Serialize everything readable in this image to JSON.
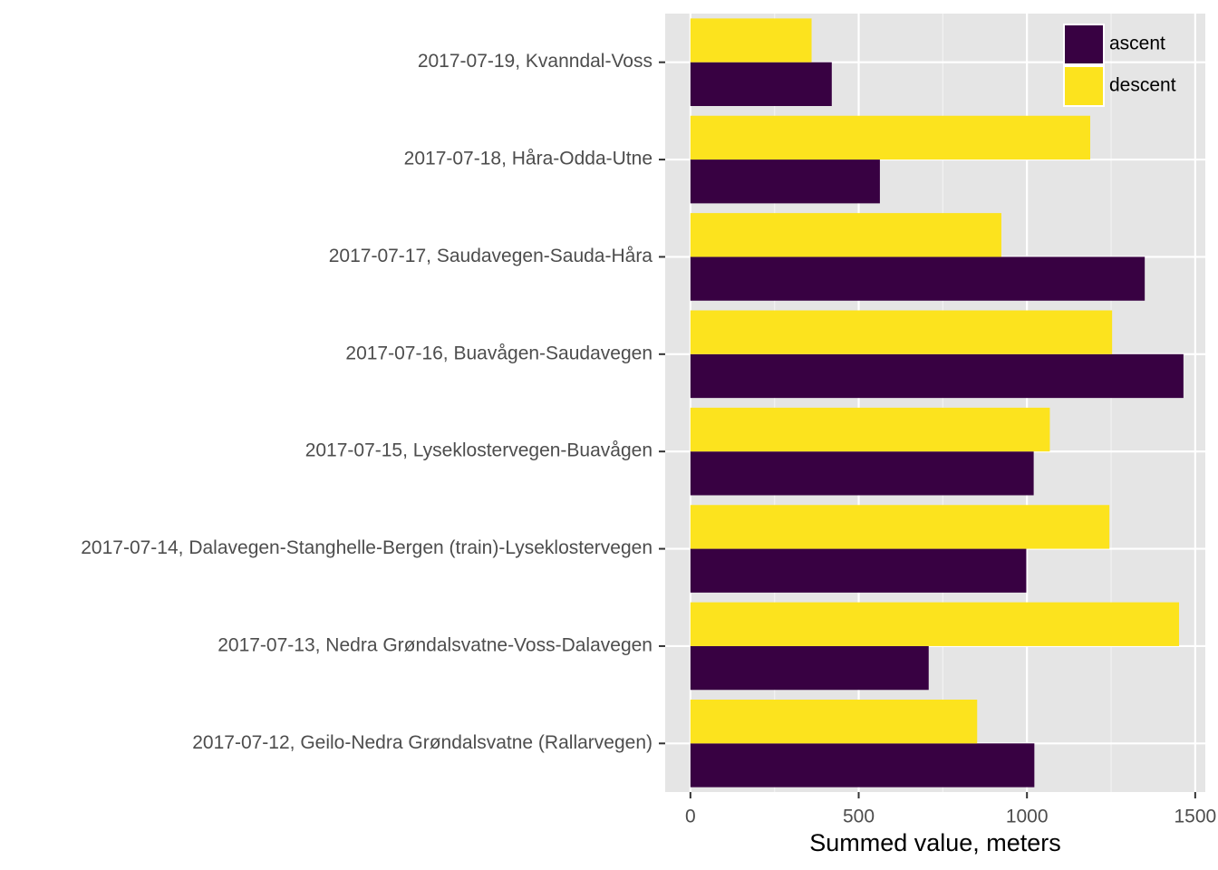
{
  "chart_data": {
    "type": "bar",
    "orientation": "horizontal",
    "categories": [
      "2017-07-19, Kvanndal-Voss",
      "2017-07-18, Håra-Odda-Utne",
      "2017-07-17, Saudavegen-Sauda-Håra",
      "2017-07-16, Buavågen-Saudavegen",
      "2017-07-15, Lyseklostervegen-Buavågen",
      "2017-07-14, Dalavegen-Stanghelle-Bergen (train)-Lyseklostervegen",
      "2017-07-13, Nedra Grøndalsvatne-Voss-Dalavegen",
      "2017-07-12, Geilo-Nedra Grøndalsvatne (Rallarvegen)"
    ],
    "series": [
      {
        "name": "ascent",
        "color": "#380142",
        "values": [
          420,
          563,
          1350,
          1465,
          1020,
          998,
          708,
          1022
        ]
      },
      {
        "name": "descent",
        "color": "#FCE31E",
        "values": [
          360,
          1188,
          924,
          1253,
          1068,
          1245,
          1452,
          852
        ]
      }
    ],
    "xlabel": "Summed value, meters",
    "ylabel": "",
    "xlim": [
      -75,
      1530
    ],
    "xticks": [
      0,
      500,
      1000,
      1500
    ],
    "grid": true,
    "panel_background": "#E5E5E5",
    "legend_position": "top-right"
  }
}
